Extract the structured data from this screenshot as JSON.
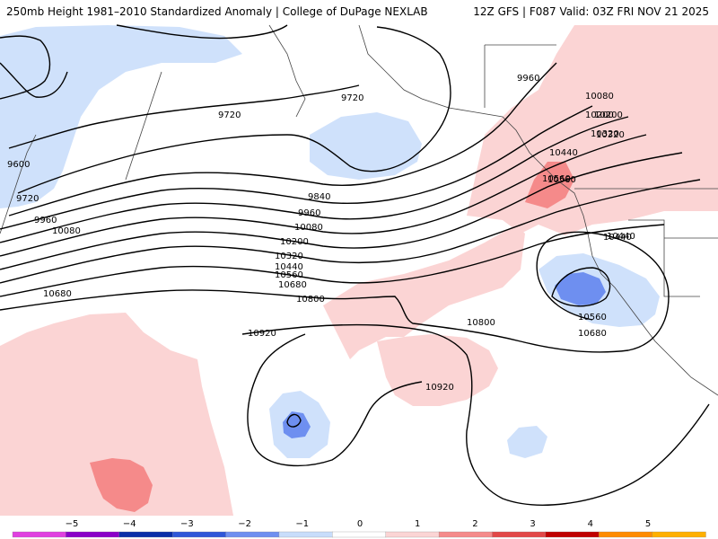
{
  "header": {
    "title_left": "250mb Height 1981–2010 Standardized Anomaly | College of DuPage NEXLAB",
    "title_right": "12Z GFS | F087 Valid: 03Z FRI NOV 21 2025"
  },
  "contour_labels": [
    "9600",
    "9720",
    "9720",
    "9720",
    "9840",
    "9960",
    "9960",
    "10080",
    "10080",
    "10200",
    "10200",
    "10320",
    "10320",
    "10440",
    "10440",
    "10560",
    "10560",
    "10680",
    "10680",
    "10800",
    "10800",
    "10920",
    "10920",
    "9960",
    "10080",
    "10200",
    "10320",
    "10440",
    "10560",
    "10440",
    "10560",
    "10680"
  ],
  "legend": {
    "ticks": [
      "−5",
      "−4",
      "−3",
      "−2",
      "−1",
      "0",
      "1",
      "2",
      "3",
      "4",
      "5"
    ],
    "colors": [
      "#e040e0",
      "#8a00c8",
      "#0a2ea8",
      "#2f57d8",
      "#6e8ff0",
      "#c8ddfb",
      "#ffffff",
      "#fbd4d4",
      "#f58a8a",
      "#e24848",
      "#c00000",
      "#ff8c00",
      "#ffb000"
    ]
  },
  "colors": {
    "anomaly_neg_light": "#cfe1fb",
    "anomaly_neg_mid": "#6e8ff0",
    "anomaly_neg_strong": "#2f57d8",
    "anomaly_pos_light": "#fbd4d4",
    "anomaly_pos_mid": "#f58a8a",
    "anomaly_pos_strong": "#e24848",
    "contour": "#000000",
    "coastline": "#444444"
  }
}
